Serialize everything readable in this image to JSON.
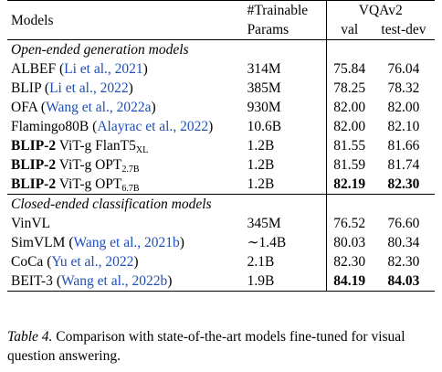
{
  "header": {
    "models": "Models",
    "trainable_line1": "#Trainable",
    "trainable_line2": "Params",
    "vqa": "VQAv2",
    "val": "val",
    "testdev": "test-dev"
  },
  "sections": [
    {
      "title": "Open-ended generation models",
      "rows": [
        {
          "name": "ALBEF",
          "bold": "",
          "cite": "Li et al., 2021",
          "sub": "",
          "params": "314M",
          "val": "75.84",
          "test": "76.04"
        },
        {
          "name": "BLIP",
          "bold": "",
          "cite": "Li et al., 2022",
          "sub": "",
          "params": "385M",
          "val": "78.25",
          "test": "78.32"
        },
        {
          "name": "OFA",
          "bold": "",
          "cite": "Wang et al., 2022a",
          "sub": "",
          "params": "930M",
          "val": "82.00",
          "test": "82.00"
        },
        {
          "name": "Flamingo80B",
          "bold": "",
          "cite": "Alayrac et al., 2022",
          "sub": "",
          "params": "10.6B",
          "val": "82.00",
          "test": "82.10"
        },
        {
          "name": "ViT-g FlanT5",
          "bold": "BLIP-2",
          "cite": "",
          "sub": "XL",
          "params": "1.2B",
          "val": "81.55",
          "test": "81.66"
        },
        {
          "name": "ViT-g OPT",
          "bold": "BLIP-2",
          "cite": "",
          "sub": "2.7B",
          "params": "1.2B",
          "val": "81.59",
          "test": "81.74"
        },
        {
          "name": "ViT-g OPT",
          "bold": "BLIP-2",
          "cite": "",
          "sub": "6.7B",
          "params": "1.2B",
          "val": "82.19",
          "test": "82.30",
          "bold_scores": true
        }
      ]
    },
    {
      "title": "Closed-ended classification models",
      "rows": [
        {
          "name": "VinVL",
          "bold": "",
          "cite": "",
          "sub": "",
          "params": "345M",
          "val": "76.52",
          "test": "76.60"
        },
        {
          "name": "SimVLM",
          "bold": "",
          "cite": "Wang et al., 2021b",
          "sub": "",
          "params": "~1.4B",
          "val": "80.03",
          "test": "80.34"
        },
        {
          "name": "CoCa",
          "bold": "",
          "cite": "Yu et al., 2022",
          "sub": "",
          "params": "2.1B",
          "val": "82.30",
          "test": "82.30"
        },
        {
          "name": "BEIT-3",
          "bold": "",
          "cite": "Wang et al., 2022b",
          "sub": "",
          "params": "1.9B",
          "val": "84.19",
          "test": "84.03",
          "bold_scores": true
        }
      ]
    }
  ],
  "caption": {
    "label": "Table 4.",
    "text": "Comparison with state-of-the-art models fine-tuned for visual question answering."
  }
}
